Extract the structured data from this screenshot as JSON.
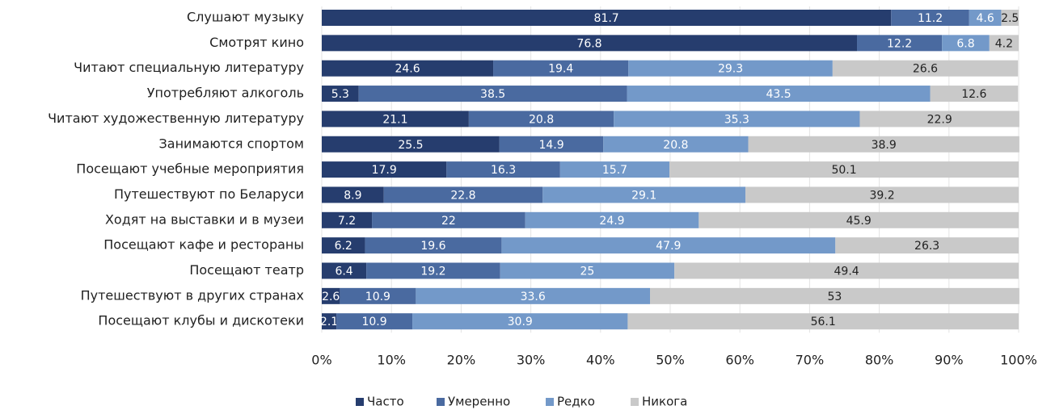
{
  "chart_data": {
    "type": "stacked_barh",
    "categories": [
      "Слушают музыку",
      "Смотрят кино",
      "Читают специальную литературу",
      "Употребляют алкоголь",
      "Читают художественную литературу",
      "Занимаются спортом",
      "Посещают учебные мероприятия",
      "Путешествуют по Беларуси ",
      "Ходят на выставки и в музеи",
      "Посещают кафе и рестораны",
      "Посещают театр",
      "Путешествуют в других странах",
      "Посещают клубы и дискотеки"
    ],
    "series": [
      {
        "name": "Часто",
        "color": "#263d6e",
        "label_color": "#ffffff",
        "values": [
          81.7,
          76.8,
          24.6,
          5.3,
          21.1,
          25.5,
          17.9,
          8.9,
          7.2,
          6.2,
          6.4,
          2.6,
          2.1
        ]
      },
      {
        "name": "Умеренно",
        "color": "#4a6aa0",
        "label_color": "#ffffff",
        "values": [
          11.2,
          12.2,
          19.4,
          38.5,
          20.8,
          14.9,
          16.3,
          22.8,
          22,
          19.6,
          19.2,
          10.9,
          10.9
        ]
      },
      {
        "name": "Редко",
        "color": "#7399c9",
        "label_color": "#ffffff",
        "values": [
          4.6,
          6.8,
          29.3,
          43.5,
          35.3,
          20.8,
          15.7,
          29.1,
          24.9,
          47.9,
          25,
          33.6,
          30.9
        ]
      },
      {
        "name": "Никога",
        "color": "#c9c9c9",
        "label_color": "#222222",
        "values": [
          2.5,
          4.2,
          26.6,
          12.6,
          22.9,
          38.9,
          50.1,
          39.2,
          45.9,
          26.3,
          49.4,
          53,
          56.1
        ]
      }
    ],
    "xlim": [
      0,
      100
    ],
    "xticks": [
      {
        "value": 0,
        "label": "0%"
      },
      {
        "value": 10,
        "label": "10%"
      },
      {
        "value": 20,
        "label": "20%"
      },
      {
        "value": 30,
        "label": "30%"
      },
      {
        "value": 40,
        "label": "40%"
      },
      {
        "value": 50,
        "label": "50%"
      },
      {
        "value": 60,
        "label": "60%"
      },
      {
        "value": 70,
        "label": "70%"
      },
      {
        "value": 80,
        "label": "80%"
      },
      {
        "value": 90,
        "label": "90%"
      },
      {
        "value": 100,
        "label": "100%"
      }
    ],
    "grid": true,
    "legend": "bottom"
  }
}
